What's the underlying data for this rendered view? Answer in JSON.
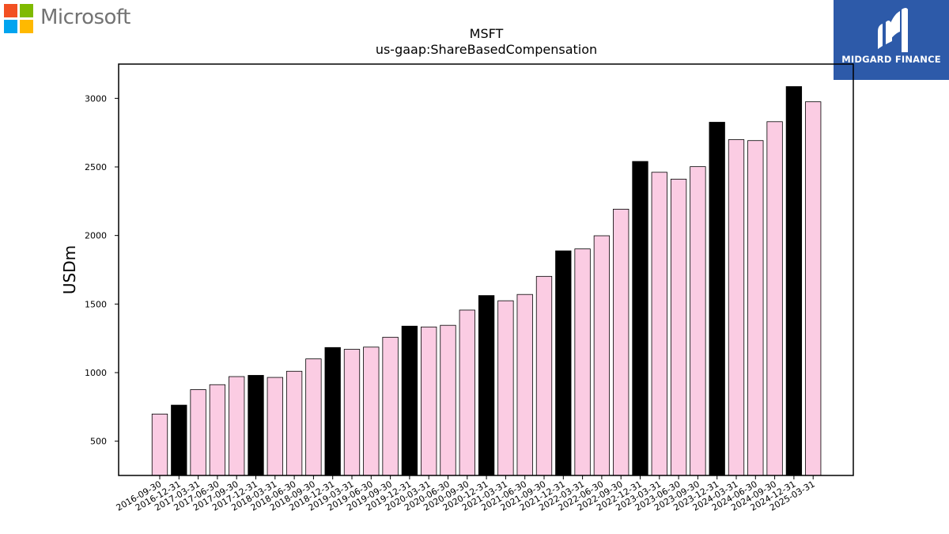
{
  "brand": {
    "left_logo_text": "Microsoft",
    "left_logo_colors": [
      "#f25022",
      "#7fba00",
      "#00a4ef",
      "#ffb900"
    ],
    "right_logo_text": "MIDGARD FINANCE",
    "right_logo_bg": "#2d5aa9"
  },
  "chart_data": {
    "type": "bar",
    "title": "MSFT",
    "subtitle": "us-gaap:ShareBasedCompensation",
    "xlabel": "",
    "ylabel": "USDm",
    "ylim": [
      250,
      3250
    ],
    "yticks": [
      500,
      1000,
      1500,
      2000,
      2500,
      3000
    ],
    "grid": false,
    "colors": {
      "quarter": "#fbcce3",
      "fiscal_year_end": "#000000",
      "edge": "#000000"
    },
    "categories": [
      "2016-09-30",
      "2016-12-31",
      "2017-03-31",
      "2017-06-30",
      "2017-09-30",
      "2017-12-31",
      "2018-03-31",
      "2018-06-30",
      "2018-09-30",
      "2018-12-31",
      "2019-03-31",
      "2019-06-30",
      "2019-09-30",
      "2019-12-31",
      "2020-03-31",
      "2020-06-30",
      "2020-09-30",
      "2020-12-31",
      "2021-03-31",
      "2021-06-30",
      "2021-09-30",
      "2021-12-31",
      "2022-03-31",
      "2022-06-30",
      "2022-09-30",
      "2022-12-31",
      "2023-03-31",
      "2023-06-30",
      "2023-09-30",
      "2023-12-31",
      "2024-03-31",
      "2024-06-30",
      "2024-09-30",
      "2024-12-31",
      "2025-03-31"
    ],
    "values": [
      698,
      763,
      876,
      912,
      971,
      980,
      965,
      1010,
      1100,
      1183,
      1170,
      1186,
      1258,
      1339,
      1333,
      1345,
      1456,
      1562,
      1524,
      1570,
      1702,
      1888,
      1902,
      1998,
      2192,
      2540,
      2461,
      2411,
      2502,
      2826,
      2699,
      2692,
      2830,
      3086,
      2975
    ],
    "highlight": [
      false,
      true,
      false,
      false,
      false,
      true,
      false,
      false,
      false,
      true,
      false,
      false,
      false,
      true,
      false,
      false,
      false,
      true,
      false,
      false,
      false,
      true,
      false,
      false,
      false,
      true,
      false,
      false,
      false,
      true,
      false,
      false,
      false,
      true,
      false
    ]
  }
}
